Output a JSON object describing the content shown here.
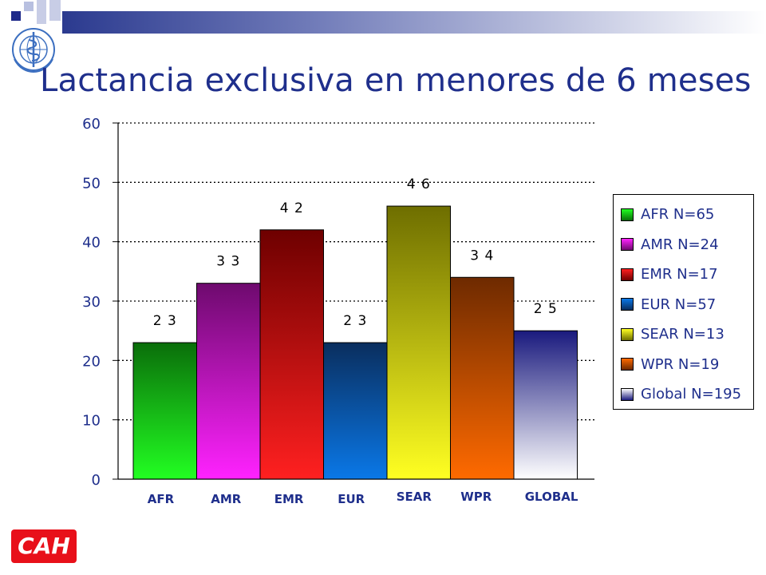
{
  "title": "Lactancia exclusiva en menores de 6 meses",
  "logo_text": "CAH",
  "colors": {
    "title": "#1f2f8c",
    "logo_bg": "#e8101a",
    "banner": "#2b3a8f"
  },
  "chart_data": {
    "type": "bar",
    "title": "",
    "xlabel": "",
    "ylabel": "",
    "ylim": [
      0,
      60
    ],
    "yticks": [
      0,
      10,
      20,
      30,
      40,
      50,
      60
    ],
    "grid": true,
    "legend_position": "right",
    "categories": [
      "AFR",
      "AMR",
      "EMR",
      "EUR",
      "SEAR",
      "WPR",
      "GLOBAL"
    ],
    "values": [
      23,
      33,
      42,
      23,
      46,
      34,
      25
    ],
    "data_labels": [
      "2 3",
      "3 3",
      "4 2",
      "2 3",
      "4 6",
      "3 4",
      "2 5"
    ],
    "legend": [
      {
        "label": "AFR N=65",
        "color": "#33cc33"
      },
      {
        "label": "AMR N=24",
        "color": "#d21ad2"
      },
      {
        "label": "EMR N=17",
        "color": "#e01010"
      },
      {
        "label": "EUR N=57",
        "color": "#1f5fae"
      },
      {
        "label": "SEAR N=13",
        "color": "#e6e61a"
      },
      {
        "label": "WPR N=19",
        "color": "#e8641a"
      },
      {
        "label": "Global N=195",
        "color": "#e4e4ee"
      }
    ],
    "bar_colors": [
      [
        "#0a6e0a",
        "#22ff22"
      ],
      [
        "#6e0a6e",
        "#ff22ff"
      ],
      [
        "#6e0000",
        "#ff2020"
      ],
      [
        "#0a2e5e",
        "#0a78e8"
      ],
      [
        "#6e6e00",
        "#ffff22"
      ],
      [
        "#6e2a00",
        "#ff6a00"
      ],
      [
        "#1a1a7e",
        "#ffffff"
      ]
    ]
  }
}
